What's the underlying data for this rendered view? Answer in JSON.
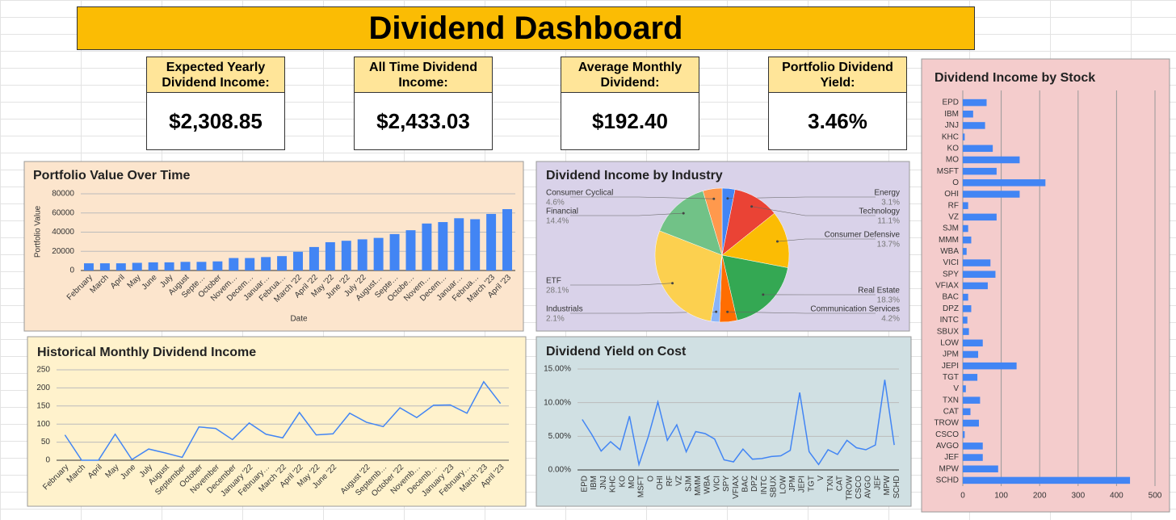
{
  "title": "Dividend Dashboard",
  "kpis": [
    {
      "label": "Expected Yearly Dividend Income:",
      "value": "$2,308.85"
    },
    {
      "label": "All Time Dividend Income:",
      "value": "$2,433.03"
    },
    {
      "label": "Average Monthly Dividend:",
      "value": "$192.40"
    },
    {
      "label": "Portfolio Dividend Yield:",
      "value": "3.46%"
    }
  ],
  "chart_data": [
    {
      "type": "bar",
      "title": "Portfolio Value Over Time",
      "xlabel": "Date",
      "ylabel": "Portfolio Value",
      "color": "#4285f4",
      "categories": [
        "February",
        "March",
        "April",
        "May",
        "June",
        "July",
        "August",
        "Septe…",
        "October",
        "Novem…",
        "Decem…",
        "Januar…",
        "Februa…",
        "March '22",
        "April '22",
        "May '22",
        "June '22",
        "July '22",
        "August…",
        "Septe…",
        "Octobe…",
        "Novem…",
        "Decem…",
        "Januar…",
        "Februa…",
        "March '23",
        "April '23"
      ],
      "values": [
        7500,
        7500,
        7500,
        8000,
        8500,
        8500,
        9000,
        9000,
        9500,
        13000,
        13000,
        14000,
        15000,
        19500,
        24500,
        29500,
        31000,
        32500,
        34000,
        38000,
        42000,
        49000,
        50500,
        54500,
        53500,
        59000,
        64000
      ],
      "ylim": [
        0,
        80000
      ],
      "yticks": [
        0,
        20000,
        40000,
        60000,
        80000
      ],
      "grid": true
    },
    {
      "type": "pie",
      "title": "Dividend Income by Industry",
      "categories": [
        "Energy",
        "Technology",
        "Consumer Defensive",
        "Real Estate",
        "Communication Services",
        "Industrials",
        "ETF",
        "Financial",
        "Consumer Cyclical"
      ],
      "values": [
        3.1,
        11.1,
        13.7,
        18.3,
        4.2,
        2.1,
        28.1,
        14.4,
        4.6
      ],
      "value_labels": [
        "3.1%",
        "11.1%",
        "13.7%",
        "18.3%",
        "4.2%",
        "2.1%",
        "28.1%",
        "14.4%",
        "4.6%"
      ],
      "colors": [
        "#4285f4",
        "#ea4335",
        "#fbbc04",
        "#34a853",
        "#ff6d01",
        "#8ab4f8",
        "#fcd04f",
        "#71c287",
        "#ff994d"
      ]
    },
    {
      "type": "line",
      "title": "Historical Monthly Dividend Income",
      "color": "#4285f4",
      "categories": [
        "February",
        "March",
        "April",
        "May",
        "June",
        "July",
        "August",
        "September",
        "October",
        "November",
        "December",
        "January '22",
        "February…",
        "March '22",
        "April '22",
        "May '22",
        "June '22",
        null,
        "August '22",
        "Septemb…",
        "October '22",
        "Novemb…",
        "Decemb…",
        "January '23",
        "February…",
        "March '23",
        "April '23"
      ],
      "values": [
        70,
        0,
        0,
        72,
        2,
        31,
        20,
        8,
        92,
        88,
        57,
        103,
        72,
        62,
        132,
        70,
        73,
        130,
        105,
        93,
        145,
        118,
        152,
        153,
        130,
        217,
        157
      ],
      "ylim": [
        0,
        250
      ],
      "yticks": [
        0,
        50,
        100,
        150,
        200,
        250
      ],
      "grid": true
    },
    {
      "type": "line",
      "title": "Dividend Yield on Cost",
      "color": "#4285f4",
      "categories": [
        "EPD",
        "IBM",
        "JNJ",
        "KHC",
        "KO",
        "MO",
        "MSFT",
        "O",
        "OHI",
        "RF",
        "VZ",
        "SJM",
        "MMM",
        "WBA",
        "VICI",
        "SPY",
        "VFIAX",
        "BAC",
        "DPZ",
        "INTC",
        "SBUX",
        "LOW",
        "JPM",
        "JEPI",
        "TGT",
        "V",
        "TXN",
        "CAT",
        "TROW",
        "CSCO",
        "AVGO",
        "JEF",
        "MPW",
        "SCHD"
      ],
      "values": [
        7.5,
        5.3,
        2.8,
        4.2,
        3.0,
        8.0,
        0.8,
        5.0,
        10.1,
        4.4,
        6.7,
        2.7,
        5.7,
        5.4,
        4.6,
        1.5,
        1.2,
        3.1,
        1.6,
        1.7,
        2.0,
        2.1,
        2.9,
        11.5,
        2.7,
        0.8,
        3.0,
        2.3,
        4.4,
        3.3,
        3.0,
        3.7,
        13.4,
        3.7
      ],
      "ylim": [
        0,
        15
      ],
      "yticks": [
        {
          "value": 0,
          "label": "0.00%"
        },
        {
          "value": 5,
          "label": "5.00%"
        },
        {
          "value": 10,
          "label": "10.00%"
        },
        {
          "value": 15,
          "label": "15.00%"
        }
      ],
      "grid": true
    },
    {
      "type": "bar",
      "orientation": "horizontal",
      "title": "Dividend Income by Stock",
      "color": "#4285f4",
      "categories": [
        "EPD",
        "IBM",
        "JNJ",
        "KHC",
        "KO",
        "MO",
        "MSFT",
        "O",
        "OHI",
        "RF",
        "VZ",
        "SJM",
        "MMM",
        "WBA",
        "VICI",
        "SPY",
        "VFIAX",
        "BAC",
        "DPZ",
        "INTC",
        "SBUX",
        "LOW",
        "JPM",
        "JEPI",
        "TGT",
        "V",
        "TXN",
        "CAT",
        "TROW",
        "CSCO",
        "AVGO",
        "JEF",
        "MPW",
        "SCHD"
      ],
      "values": [
        62,
        27,
        58,
        5,
        78,
        148,
        88,
        215,
        148,
        14,
        88,
        14,
        22,
        10,
        72,
        85,
        65,
        14,
        22,
        12,
        16,
        52,
        40,
        140,
        38,
        8,
        45,
        20,
        42,
        5,
        52,
        52,
        92,
        435
      ],
      "xlim": [
        0,
        500
      ],
      "xticks": [
        0,
        100,
        200,
        300,
        400,
        500
      ],
      "grid": true
    }
  ]
}
